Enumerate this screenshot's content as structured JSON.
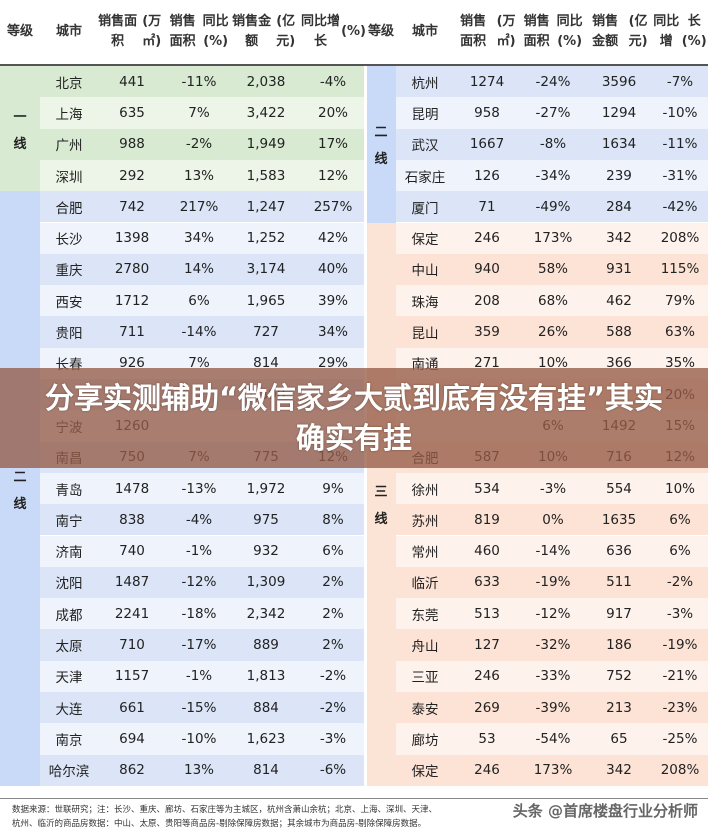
{
  "headers": {
    "left": [
      [
        "等",
        "级"
      ],
      [
        "城市"
      ],
      [
        "销售面积",
        "(万㎡)"
      ],
      [
        "销售面积",
        "同比(%)"
      ],
      [
        "销售金额",
        "(亿元)"
      ],
      [
        "同比增长",
        "(%)"
      ]
    ],
    "right": [
      [
        "等",
        "级"
      ],
      [
        "城市"
      ],
      [
        "销售面积",
        "(万㎡)"
      ],
      [
        "销售面积",
        "同比(%)"
      ],
      [
        "销售金额",
        "(亿元)"
      ],
      [
        "同比增",
        "长(%)"
      ]
    ]
  },
  "tiers": {
    "left": [
      {
        "label": [
          "一",
          "线"
        ],
        "color": "#d9ead3"
      },
      {
        "label": [
          "二",
          "线"
        ],
        "color": "#c9daf8"
      }
    ],
    "right": [
      {
        "label": [
          "二",
          "线"
        ],
        "color": "#c9daf8"
      },
      {
        "label": [
          "三",
          "线"
        ],
        "color": "#fbe4d5"
      }
    ]
  },
  "colors": {
    "green_dark": "#d9ead3",
    "green_light": "#edf5e8",
    "blue_dark": "#dbe5f7",
    "blue_light": "#eef3fc",
    "peach_dark": "#fde3d6",
    "peach_light": "#fef2ec",
    "overlay": "#965c48"
  },
  "left_rows": [
    [
      "北京",
      "441",
      "-11%",
      "2,038",
      "-4%"
    ],
    [
      "上海",
      "635",
      "7%",
      "3,422",
      "20%"
    ],
    [
      "广州",
      "988",
      "-2%",
      "1,949",
      "17%"
    ],
    [
      "深圳",
      "292",
      "13%",
      "1,583",
      "12%"
    ],
    [
      "合肥",
      "742",
      "217%",
      "1,247",
      "257%"
    ],
    [
      "长沙",
      "1398",
      "34%",
      "1,252",
      "42%"
    ],
    [
      "重庆",
      "2780",
      "14%",
      "3,174",
      "40%"
    ],
    [
      "西安",
      "1712",
      "6%",
      "1,965",
      "39%"
    ],
    [
      "贵阳",
      "711",
      "-14%",
      "727",
      "34%"
    ],
    [
      "长春",
      "926",
      "7%",
      "814",
      "29%"
    ],
    [
      "",
      "",
      "",
      "1,398",
      ""
    ],
    [
      "宁波",
      "1260",
      "",
      "",
      ""
    ],
    [
      "南昌",
      "750",
      "7%",
      "775",
      "12%"
    ],
    [
      "青岛",
      "1478",
      "-13%",
      "1,972",
      "9%"
    ],
    [
      "南宁",
      "838",
      "-4%",
      "975",
      "8%"
    ],
    [
      "济南",
      "740",
      "-1%",
      "932",
      "6%"
    ],
    [
      "沈阳",
      "1487",
      "-12%",
      "1,309",
      "2%"
    ],
    [
      "成都",
      "2241",
      "-18%",
      "2,342",
      "2%"
    ],
    [
      "太原",
      "710",
      "-17%",
      "889",
      "2%"
    ],
    [
      "天津",
      "1157",
      "-1%",
      "1,813",
      "-2%"
    ],
    [
      "大连",
      "661",
      "-15%",
      "884",
      "-2%"
    ],
    [
      "南京",
      "694",
      "-10%",
      "1,623",
      "-3%"
    ],
    [
      "哈尔滨",
      "862",
      "13%",
      "814",
      "-6%"
    ]
  ],
  "right_rows": [
    [
      "杭州",
      "1274",
      "-24%",
      "3596",
      "-7%"
    ],
    [
      "昆明",
      "958",
      "-27%",
      "1294",
      "-10%"
    ],
    [
      "武汉",
      "1667",
      "-8%",
      "1634",
      "-11%"
    ],
    [
      "石家庄",
      "126",
      "-34%",
      "239",
      "-31%"
    ],
    [
      "厦门",
      "71",
      "-49%",
      "284",
      "-42%"
    ],
    [
      "保定",
      "246",
      "173%",
      "342",
      "208%"
    ],
    [
      "中山",
      "940",
      "58%",
      "931",
      "115%"
    ],
    [
      "珠海",
      "208",
      "68%",
      "462",
      "79%"
    ],
    [
      "昆山",
      "359",
      "26%",
      "588",
      "63%"
    ],
    [
      "南通",
      "271",
      "10%",
      "366",
      "35%"
    ],
    [
      "",
      "",
      "",
      "",
      "20%"
    ],
    [
      "",
      "",
      "6%",
      "1492",
      "15%"
    ],
    [
      "合肥",
      "587",
      "10%",
      "716",
      "12%"
    ],
    [
      "徐州",
      "534",
      "-3%",
      "554",
      "10%"
    ],
    [
      "苏州",
      "819",
      "0%",
      "1635",
      "6%"
    ],
    [
      "常州",
      "460",
      "-14%",
      "636",
      "6%"
    ],
    [
      "临沂",
      "633",
      "-19%",
      "511",
      "-2%"
    ],
    [
      "东莞",
      "513",
      "-12%",
      "917",
      "-3%"
    ],
    [
      "舟山",
      "127",
      "-32%",
      "186",
      "-19%"
    ],
    [
      "三亚",
      "246",
      "-33%",
      "752",
      "-21%"
    ],
    [
      "泰安",
      "269",
      "-39%",
      "213",
      "-23%"
    ],
    [
      "廊坊",
      "53",
      "-54%",
      "65",
      "-25%"
    ],
    [
      "保定",
      "246",
      "173%",
      "342",
      "208%"
    ]
  ],
  "overlay": {
    "title": "分享实测辅助“微信家乡大贰到底有没有挂”其实确实有挂"
  },
  "footer": {
    "line1": "数据来源：世联研究；注：长沙、重庆、廊坊、石家庄等为主城区，杭州含萧山余杭；北京、上海、深圳、天津、",
    "line2": "杭州、临沂的商品房数据：中山、太原、贵阳等商品房-剔除保障房数据；其余城市为商品房-剔除保障房数据。",
    "watermark": "头条 @首席楼盘行业分析师"
  }
}
